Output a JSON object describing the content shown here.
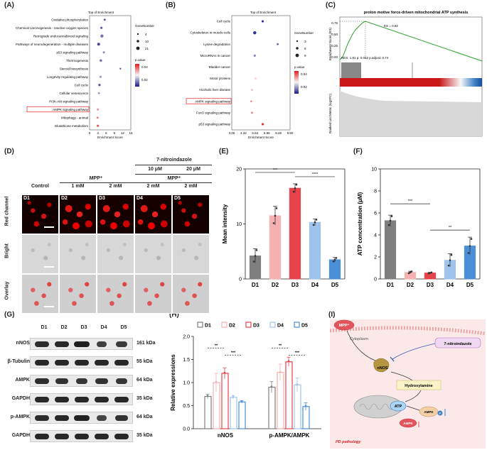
{
  "panels": {
    "a": "(A)",
    "b": "(B)",
    "c": "(C)",
    "d": "(D)",
    "e": "(E)",
    "f": "(F)",
    "g": "(G)",
    "h": "(H)",
    "i": "(I)"
  },
  "panel_a": {
    "title": "Top of Enrichment",
    "xlabel": "Enrichment Score",
    "terms": [
      "Oxidative phosphorylation",
      "Chemical carcinogenesis - reactive oxygen species",
      "Retrograde endocannabinoid signaling",
      "Pathways of neurodegeneration - multiple diseases",
      "p53 signaling pathway",
      "Thermogenesis",
      "Steroid biosynthesis",
      "Longevity regulating pathway",
      "Cell cycle",
      "Cellular senescence",
      "PI3K-Akt signaling pathway",
      "AMPK signaling pathway",
      "Mitophagy - animal",
      "Glutathione metabolism"
    ],
    "enrichment": [
      5.5,
      4.3,
      4.5,
      3.3,
      5.2,
      4.1,
      11.2,
      4.0,
      3.6,
      3.4,
      1.8,
      3.0,
      2.9,
      3.0
    ],
    "xticks": [
      "0",
      "3",
      "6",
      "9",
      "12",
      "15"
    ],
    "legend_size_title": "GeneNumber",
    "legend_sizes": [
      "4",
      "10",
      "21"
    ],
    "legend_p_title": "p.value",
    "legend_p_ticks": [
      "0.04",
      "0.02"
    ],
    "highlight": "AMPK signaling pathway"
  },
  "panel_b": {
    "title": "Top of Enrichment",
    "xlabel": "Enrichment Score",
    "terms": [
      "Cell cycle",
      "Cytoskeleton in muscle cells",
      "Lysine degradation",
      "MicroRNAs in cancer",
      "Bladder cancer",
      "Motor proteins",
      "Alcoholic liver disease",
      "AMPK signaling pathway",
      "FoxO signaling pathway",
      "p53 signaling pathway"
    ],
    "enrichment": [
      6.5,
      5.6,
      8.2,
      5.6,
      9.4,
      5.7,
      5.3,
      5.2,
      5.3,
      6.5
    ],
    "xticks": [
      "3.00",
      "4.32",
      "5.64",
      "6.96",
      "8.28",
      "9.60"
    ],
    "legend_size_title": "GeneNumber",
    "legend_sizes": [
      "3",
      "6",
      "9"
    ],
    "legend_p_title": "p.value",
    "legend_p_ticks": [
      "0.04",
      "0.02"
    ],
    "highlight": "AMPK signaling pathway"
  },
  "panel_c": {
    "title": "proton motive force-driven mitochondrial ATP synthesis",
    "es_label": "ES = 0.82",
    "stats": "NES: 1.81   p: 0.022   p.adjust: 0.74",
    "ylabel_top": "Enrichment Score (ES)",
    "ylabel_bottom": "Ranked List Metric (log2FC)",
    "yticks": [
      "0.75",
      "0.50",
      "0.25",
      "0.00"
    ]
  },
  "panel_d": {
    "header_drug": "7-nitroindazole",
    "dose_10": "10 μM",
    "dose_20": "20 μM",
    "mpp_left": "MPP⁺",
    "mpp_right": "MPP⁺",
    "cols": [
      "Control",
      "1 mM",
      "2 mM",
      "2 mM",
      "2 mM"
    ],
    "groups": [
      "D1",
      "D2",
      "D3",
      "D4",
      "D5"
    ],
    "rows": [
      "Red channel",
      "Bright",
      "Overlay"
    ]
  },
  "chart_data": [
    {
      "type": "bar",
      "id": "E",
      "categories": [
        "D1",
        "D2",
        "D3",
        "D4",
        "D5"
      ],
      "values": [
        4.2,
        11.5,
        16.5,
        10.3,
        3.5
      ],
      "errors": [
        1.3,
        1.7,
        0.8,
        0.6,
        0.4
      ],
      "colors": [
        "#7f7f7f",
        "#f5b0b0",
        "#e8424a",
        "#9ec4ee",
        "#4a90d9"
      ],
      "ylabel": "Mean intensity",
      "ylim": [
        0,
        20
      ],
      "yticks": [
        0,
        10,
        20
      ],
      "sig": [
        {
          "from": 0,
          "to": 2,
          "label": "***"
        },
        {
          "from": 2,
          "to": 4,
          "label": "****"
        }
      ]
    },
    {
      "type": "bar",
      "id": "F",
      "categories": [
        "D1",
        "D2",
        "D3",
        "D4",
        "D5"
      ],
      "values": [
        5.3,
        0.6,
        0.55,
        1.7,
        3.0
      ],
      "errors": [
        0.5,
        0.1,
        0.05,
        0.6,
        0.8
      ],
      "colors": [
        "#7f7f7f",
        "#f5b0b0",
        "#e8424a",
        "#9ec4ee",
        "#4a90d9"
      ],
      "ylabel": "ATP concentration (μM)",
      "ylim": [
        0,
        10
      ],
      "yticks": [
        0,
        2,
        4,
        6,
        8,
        10
      ],
      "sig": [
        {
          "from": 0,
          "to": 2,
          "label": "***"
        },
        {
          "from": 2,
          "to": 4,
          "label": "**"
        }
      ]
    },
    {
      "type": "bar",
      "id": "H",
      "categories": [
        "nNOS",
        "p-AMPK/AMPK"
      ],
      "series": [
        {
          "name": "D1",
          "values": [
            0.7,
            0.9
          ],
          "errors": [
            0.05,
            0.12
          ],
          "color": "#7f7f7f"
        },
        {
          "name": "D2",
          "values": [
            1.0,
            1.22
          ],
          "errors": [
            0.2,
            0.18
          ],
          "color": "#f5b0b0"
        },
        {
          "name": "D3",
          "values": [
            1.2,
            1.45
          ],
          "errors": [
            0.12,
            0.1
          ],
          "color": "#e8424a"
        },
        {
          "name": "D4",
          "values": [
            0.68,
            0.95
          ],
          "errors": [
            0.04,
            0.15
          ],
          "color": "#9ec4ee"
        },
        {
          "name": "D5",
          "values": [
            0.58,
            0.48
          ],
          "errors": [
            0.03,
            0.08
          ],
          "color": "#4a90d9"
        }
      ],
      "ylabel": "Relative expressions",
      "ylim": [
        0,
        2.0
      ],
      "yticks": [
        "0.0",
        "0.5",
        "1.0",
        "1.5",
        "2.0"
      ],
      "sig_labels": [
        "**",
        "***",
        "**",
        "***"
      ]
    }
  ],
  "panel_g": {
    "groups": [
      "D1",
      "D2",
      "D3",
      "D4",
      "D5"
    ],
    "rows": [
      {
        "name": "nNOS",
        "kda": "161 kDa"
      },
      {
        "name": "β-Tubulin",
        "kda": "55 kDa"
      },
      {
        "name": "AMPK",
        "kda": "64 kDa"
      },
      {
        "name": "GAPDH",
        "kda": "35 kDa"
      },
      {
        "name": "p-AMPK",
        "kda": "64 kDa"
      },
      {
        "name": "GAPDH",
        "kda": "35 kDa"
      }
    ]
  },
  "panel_i": {
    "mpp": "MPP⁺",
    "cytoplasm": "Cytoplasm",
    "inhibitor": "7-nitroindazole",
    "nnos": "nNOS",
    "hydroxylamine": "Hydroxylamine",
    "atp": "ATP",
    "ampk": "AMPK",
    "ampk_p": "AMPK",
    "p": "P",
    "pathology": "PD pathology"
  }
}
